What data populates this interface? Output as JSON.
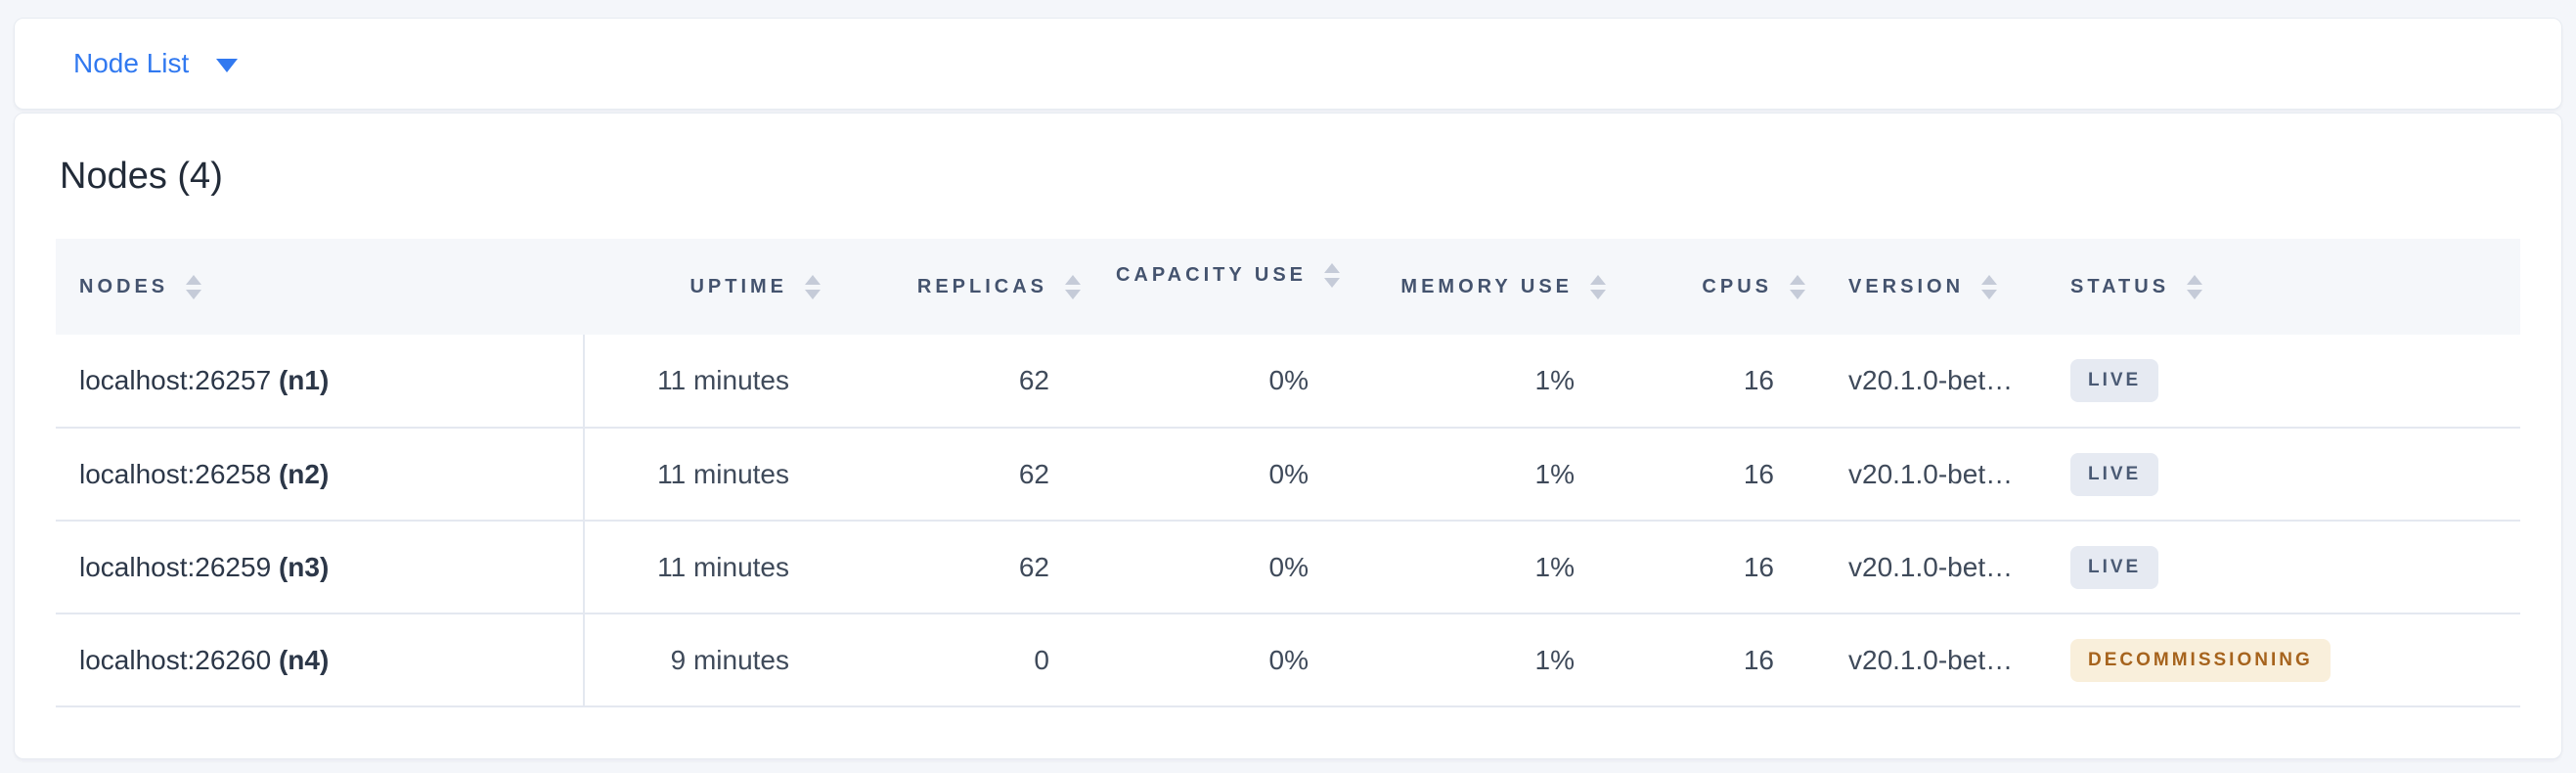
{
  "page": {
    "background_color": "#f4f6fa",
    "accent_color": "#3179f0"
  },
  "view_selector": {
    "label": "Node List",
    "icon": "caret-down-icon"
  },
  "panel": {
    "title": "Nodes (4)"
  },
  "table": {
    "columns": [
      {
        "key": "nodes",
        "label": "NODES",
        "align": "left",
        "wrap": false,
        "sort_icon": "sort-icon"
      },
      {
        "key": "uptime",
        "label": "UPTIME",
        "align": "right",
        "wrap": false,
        "sort_icon": "sort-icon"
      },
      {
        "key": "replicas",
        "label": "REPLICAS",
        "align": "right",
        "wrap": false,
        "sort_icon": "sort-icon"
      },
      {
        "key": "capacity_use",
        "label": "CAPACITY USE",
        "align": "right",
        "wrap": true,
        "sort_icon": "sort-icon"
      },
      {
        "key": "memory_use",
        "label": "MEMORY USE",
        "align": "right",
        "wrap": false,
        "sort_icon": "sort-icon"
      },
      {
        "key": "cpus",
        "label": "CPUS",
        "align": "right",
        "wrap": false,
        "sort_icon": "sort-icon"
      },
      {
        "key": "version",
        "label": "VERSION",
        "align": "left",
        "wrap": false,
        "sort_icon": "sort-icon"
      },
      {
        "key": "status",
        "label": "STATUS",
        "align": "left",
        "wrap": false,
        "sort_icon": "sort-icon"
      }
    ],
    "rows": [
      {
        "node_address": "localhost:26257",
        "node_id": "(n1)",
        "uptime": "11 minutes",
        "replicas": "62",
        "capacity_use": "0%",
        "memory_use": "1%",
        "cpus": "16",
        "version": "v20.1.0-bet…",
        "status_label": "LIVE",
        "status_type": "live"
      },
      {
        "node_address": "localhost:26258",
        "node_id": "(n2)",
        "uptime": "11 minutes",
        "replicas": "62",
        "capacity_use": "0%",
        "memory_use": "1%",
        "cpus": "16",
        "version": "v20.1.0-bet…",
        "status_label": "LIVE",
        "status_type": "live"
      },
      {
        "node_address": "localhost:26259",
        "node_id": "(n3)",
        "uptime": "11 minutes",
        "replicas": "62",
        "capacity_use": "0%",
        "memory_use": "1%",
        "cpus": "16",
        "version": "v20.1.0-bet…",
        "status_label": "LIVE",
        "status_type": "live"
      },
      {
        "node_address": "localhost:26260",
        "node_id": "(n4)",
        "uptime": "9 minutes",
        "replicas": "0",
        "capacity_use": "0%",
        "memory_use": "1%",
        "cpus": "16",
        "version": "v20.1.0-bet…",
        "status_label": "DECOMMISSIONING",
        "status_type": "decommissioning"
      }
    ]
  },
  "status_colors": {
    "live": {
      "background": "#e6eaf2",
      "text": "#4a5a74"
    },
    "decommissioning": {
      "background": "#f9efdb",
      "text": "#a6631d"
    }
  }
}
